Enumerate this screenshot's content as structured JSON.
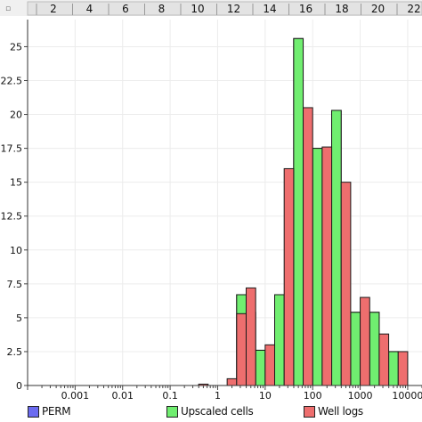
{
  "corner_mark": "▫",
  "chart_data": {
    "type": "bar",
    "top_axis_ticks": [
      "2",
      "4",
      "6",
      "8",
      "10",
      "12",
      "14",
      "16",
      "18",
      "20",
      "22"
    ],
    "y_ticks": [
      "0",
      "2.5",
      "5",
      "7.5",
      "10",
      "12.5",
      "15",
      "17.5",
      "20",
      "22.5",
      "25"
    ],
    "x_ticks": [
      "0.001",
      "0.01",
      "0.1",
      "1",
      "10",
      "100",
      "1000",
      "10000"
    ],
    "x_tick_values": [
      0.001,
      0.01,
      0.1,
      1,
      10,
      100,
      1000,
      10000
    ],
    "xlim": [
      0.0001,
      20000
    ],
    "ylim": [
      0,
      27
    ],
    "x_scale": "log",
    "grid": true,
    "legend_position": "bottom",
    "bins_log10": [
      [
        -0.4,
        -0.2
      ],
      [
        -0.2,
        0.0
      ],
      [
        0.0,
        0.2
      ],
      [
        0.2,
        0.4
      ],
      [
        0.4,
        0.6
      ],
      [
        0.6,
        0.8
      ],
      [
        0.8,
        1.0
      ],
      [
        1.0,
        1.2
      ],
      [
        1.2,
        1.4
      ],
      [
        1.4,
        1.6
      ],
      [
        1.6,
        1.8
      ],
      [
        1.8,
        2.0
      ],
      [
        2.0,
        2.2
      ],
      [
        2.2,
        2.4
      ],
      [
        2.4,
        2.6
      ],
      [
        2.6,
        2.8
      ],
      [
        2.8,
        3.0
      ],
      [
        3.0,
        3.2
      ],
      [
        3.2,
        3.4
      ],
      [
        3.4,
        3.6
      ],
      [
        3.6,
        3.8
      ],
      [
        3.8,
        4.0
      ],
      [
        4.0,
        4.2
      ]
    ],
    "series": [
      {
        "name": "PERM",
        "color": "#6b6bf0",
        "values": [
          0,
          0,
          0,
          0,
          6.7,
          0,
          2.6,
          0,
          6.7,
          0,
          25.6,
          0,
          17.5,
          0,
          20.3,
          0,
          5.4,
          0,
          5.4,
          0,
          2.5,
          0,
          0
        ]
      },
      {
        "name": "Upscaled cells",
        "color": "#70ee70",
        "values": [
          0,
          0,
          0,
          0,
          6.7,
          5.4,
          2.6,
          0,
          6.7,
          0,
          25.6,
          0,
          17.5,
          0,
          20.3,
          0,
          5.4,
          0,
          5.4,
          0,
          2.5,
          0,
          0
        ]
      },
      {
        "name": "Well logs",
        "color": "#ee6e6e",
        "values": [
          0.1,
          0,
          0,
          0.5,
          5.3,
          7.2,
          0,
          3.0,
          0,
          16.0,
          0,
          20.5,
          0,
          17.6,
          0,
          15.0,
          0,
          6.5,
          0,
          3.8,
          0,
          2.5,
          0
        ]
      }
    ]
  }
}
